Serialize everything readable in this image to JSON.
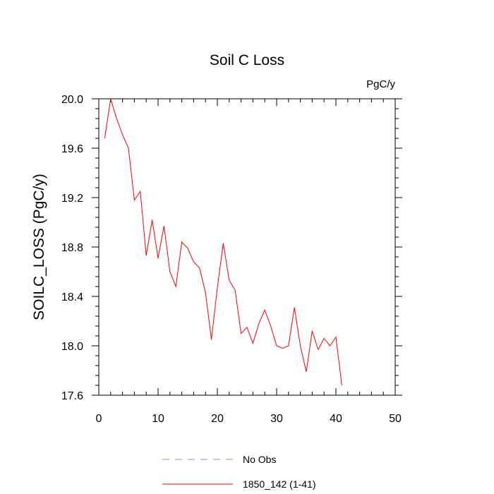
{
  "chart_data": {
    "type": "line",
    "title": "Soil C Loss",
    "units": "PgC/y",
    "ylabel": "SOILC_LOSS  (PgC/y)",
    "xlabel": "",
    "xlim": [
      0,
      50
    ],
    "ylim": [
      17.6,
      20.0
    ],
    "xticks": [
      0,
      10,
      20,
      30,
      40,
      50
    ],
    "xtick_labels": [
      "0",
      "10",
      "20",
      "30",
      "40",
      "50"
    ],
    "yticks": [
      17.6,
      18.0,
      18.4,
      18.8,
      19.2,
      19.6,
      20.0
    ],
    "ytick_labels": [
      "17.6",
      "18.0",
      "18.4",
      "18.8",
      "19.2",
      "19.6",
      "20.0"
    ],
    "grid": false,
    "legend_position": "bottom",
    "series": [
      {
        "name": "1850_142 (1-41)",
        "color": "#ff0000",
        "style": "solid",
        "x": [
          1,
          2,
          3,
          4,
          5,
          6,
          7,
          8,
          9,
          10,
          11,
          12,
          13,
          14,
          15,
          16,
          17,
          18,
          19,
          20,
          21,
          22,
          23,
          24,
          25,
          26,
          27,
          28,
          29,
          30,
          31,
          32,
          33,
          34,
          35,
          36,
          37,
          38,
          39,
          40,
          41
        ],
        "values": [
          19.68,
          20.0,
          19.84,
          19.71,
          19.6,
          19.18,
          19.25,
          18.73,
          19.02,
          18.71,
          18.97,
          18.6,
          18.48,
          18.84,
          18.79,
          18.68,
          18.63,
          18.43,
          18.05,
          18.47,
          18.83,
          18.53,
          18.45,
          18.1,
          18.15,
          18.02,
          18.18,
          18.29,
          18.16,
          18.0,
          17.98,
          18.0,
          18.31,
          18.0,
          17.79,
          18.12,
          17.97,
          18.06,
          18.0,
          18.07,
          17.68
        ]
      }
    ],
    "legend": [
      {
        "label": "No Obs",
        "color": "#8a8aff",
        "style": "dashed"
      },
      {
        "label": "1850_142 (1-41)",
        "color": "#ff0000",
        "style": "solid"
      }
    ]
  }
}
